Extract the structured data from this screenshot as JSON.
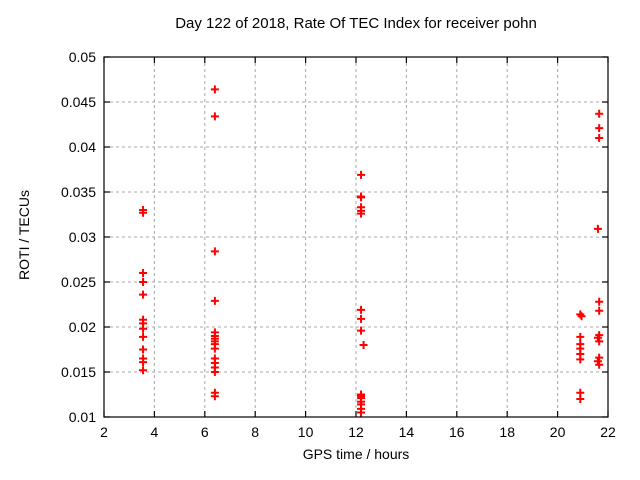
{
  "window": {
    "title": "Day 122 of 2018, Rate Of TEC Index for receiver pohn"
  },
  "chart_data": {
    "type": "scatter",
    "title": "Day 122 of 2018, Rate Of TEC Index for receiver pohn",
    "xlabel": "GPS time / hours",
    "ylabel": "ROTI / TECUs",
    "xlim": [
      2,
      22
    ],
    "ylim": [
      0.01,
      0.05
    ],
    "xticks": {
      "values": [
        2,
        4,
        6,
        8,
        10,
        12,
        14,
        16,
        18,
        20,
        22
      ],
      "labels": [
        "2",
        "4",
        "6",
        "8",
        "10",
        "12",
        "14",
        "16",
        "18",
        "20",
        "22"
      ]
    },
    "yticks": {
      "values": [
        0.01,
        0.015,
        0.02,
        0.025,
        0.03,
        0.035,
        0.04,
        0.045,
        0.05
      ],
      "labels": [
        "0.01",
        "0.015",
        "0.02",
        "0.025",
        "0.03",
        "0.035",
        "0.04",
        "0.045",
        "0.05"
      ]
    },
    "grid": true,
    "legend": null,
    "marker": {
      "shape": "plus",
      "color": "#ff0000",
      "size": 9
    },
    "colors": {
      "background": "#ffffff",
      "border": "#000000",
      "grid": "#a8a8a8",
      "text": "#000000",
      "marker": "#ff0000"
    },
    "series": [
      {
        "name": "ROTI",
        "points": [
          [
            3.55,
            0.033
          ],
          [
            3.55,
            0.0327
          ],
          [
            3.55,
            0.026
          ],
          [
            3.55,
            0.025
          ],
          [
            3.55,
            0.0236
          ],
          [
            3.55,
            0.0208
          ],
          [
            3.55,
            0.0204
          ],
          [
            3.55,
            0.0198
          ],
          [
            3.55,
            0.0189
          ],
          [
            3.55,
            0.0175
          ],
          [
            3.55,
            0.0165
          ],
          [
            3.55,
            0.0161
          ],
          [
            3.55,
            0.0152
          ],
          [
            6.4,
            0.0464
          ],
          [
            6.4,
            0.0434
          ],
          [
            6.4,
            0.0284
          ],
          [
            6.4,
            0.0229
          ],
          [
            6.4,
            0.0194
          ],
          [
            6.4,
            0.019
          ],
          [
            6.4,
            0.0187
          ],
          [
            6.4,
            0.0184
          ],
          [
            6.4,
            0.0181
          ],
          [
            6.4,
            0.0176
          ],
          [
            6.4,
            0.0165
          ],
          [
            6.4,
            0.016
          ],
          [
            6.4,
            0.0155
          ],
          [
            6.4,
            0.015
          ],
          [
            6.4,
            0.0127
          ],
          [
            6.4,
            0.0123
          ],
          [
            12.2,
            0.0369
          ],
          [
            12.2,
            0.0345
          ],
          [
            12.2,
            0.0344
          ],
          [
            12.2,
            0.0333
          ],
          [
            12.2,
            0.0329
          ],
          [
            12.2,
            0.0326
          ],
          [
            12.2,
            0.0219
          ],
          [
            12.2,
            0.0209
          ],
          [
            12.2,
            0.0196
          ],
          [
            12.3,
            0.018
          ],
          [
            12.2,
            0.0125
          ],
          [
            12.2,
            0.0123
          ],
          [
            12.2,
            0.0121
          ],
          [
            12.2,
            0.0117
          ],
          [
            12.2,
            0.0114
          ],
          [
            12.2,
            0.0109
          ],
          [
            12.2,
            0.0105
          ],
          [
            20.9,
            0.0214
          ],
          [
            20.95,
            0.0212
          ],
          [
            20.9,
            0.0189
          ],
          [
            20.9,
            0.0181
          ],
          [
            20.9,
            0.0176
          ],
          [
            20.9,
            0.017
          ],
          [
            20.9,
            0.0164
          ],
          [
            20.9,
            0.0127
          ],
          [
            20.9,
            0.012
          ],
          [
            21.65,
            0.0437
          ],
          [
            21.65,
            0.0421
          ],
          [
            21.65,
            0.041
          ],
          [
            21.6,
            0.0309
          ],
          [
            21.65,
            0.0228
          ],
          [
            21.65,
            0.0218
          ],
          [
            21.65,
            0.0191
          ],
          [
            21.6,
            0.0188
          ],
          [
            21.65,
            0.0184
          ],
          [
            21.65,
            0.0166
          ],
          [
            21.6,
            0.0162
          ],
          [
            21.65,
            0.0158
          ]
        ]
      }
    ]
  }
}
